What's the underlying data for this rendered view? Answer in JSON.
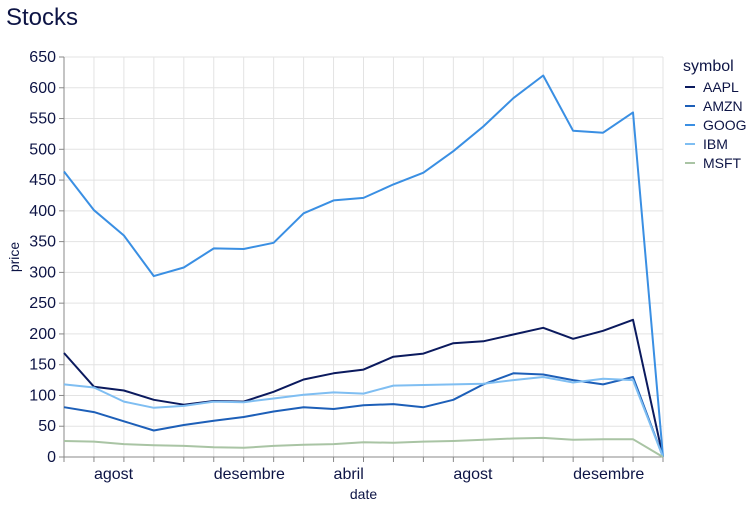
{
  "chart_data": {
    "type": "line",
    "title": "Stocks",
    "xlabel": "date",
    "ylabel": "price",
    "ylim": [
      0,
      650
    ],
    "yticks": [
      0,
      50,
      100,
      150,
      200,
      250,
      300,
      350,
      400,
      450,
      500,
      550,
      600,
      650
    ],
    "x": [
      "2006-07",
      "2006-08",
      "2006-09",
      "2006-10",
      "2006-11",
      "2006-12",
      "2007-01",
      "2007-02",
      "2007-03",
      "2007-04",
      "2007-05",
      "2007-06",
      "2007-07",
      "2007-08",
      "2007-09",
      "2007-10",
      "2007-11",
      "2007-12",
      "2008-01",
      "2008-02",
      "2008-03"
    ],
    "xtick_labels": [
      {
        "month": "2006-08",
        "label": "agost"
      },
      {
        "month": "2006-12",
        "label": "desembre"
      },
      {
        "month": "2007-04",
        "label": "abril"
      },
      {
        "month": "2007-08",
        "label": "agost"
      },
      {
        "month": "2007-12",
        "label": "desembre"
      }
    ],
    "grid": true,
    "legend_title": "symbol",
    "legend_position": "right",
    "series": [
      {
        "name": "AAPL",
        "color": "#0b1a5e",
        "values": [
          169,
          114,
          108,
          93,
          85,
          91,
          90,
          106,
          126,
          136,
          142,
          163,
          168,
          185,
          188,
          199,
          210,
          192,
          205,
          223,
          0
        ]
      },
      {
        "name": "AMZN",
        "color": "#1d5fb8",
        "values": [
          81,
          73,
          58,
          43,
          52,
          59,
          65,
          74,
          81,
          78,
          84,
          86,
          81,
          93,
          118,
          136,
          134,
          125,
          118,
          130,
          0
        ]
      },
      {
        "name": "GOOG",
        "color": "#3a8fe3",
        "values": [
          464,
          401,
          360,
          294,
          308,
          339,
          338,
          348,
          396,
          417,
          421,
          443,
          462,
          497,
          537,
          583,
          620,
          530,
          527,
          560,
          0
        ]
      },
      {
        "name": "IBM",
        "color": "#7fbef2",
        "values": [
          118,
          113,
          90,
          80,
          83,
          90,
          89,
          95,
          101,
          105,
          103,
          116,
          117,
          118,
          119,
          125,
          130,
          121,
          127,
          125,
          0
        ]
      },
      {
        "name": "MSFT",
        "color": "#a9c4a4",
        "values": [
          26,
          25,
          21,
          19,
          18,
          16,
          15,
          18,
          20,
          21,
          24,
          23,
          25,
          26,
          28,
          30,
          31,
          28,
          29,
          29,
          0
        ]
      }
    ]
  }
}
